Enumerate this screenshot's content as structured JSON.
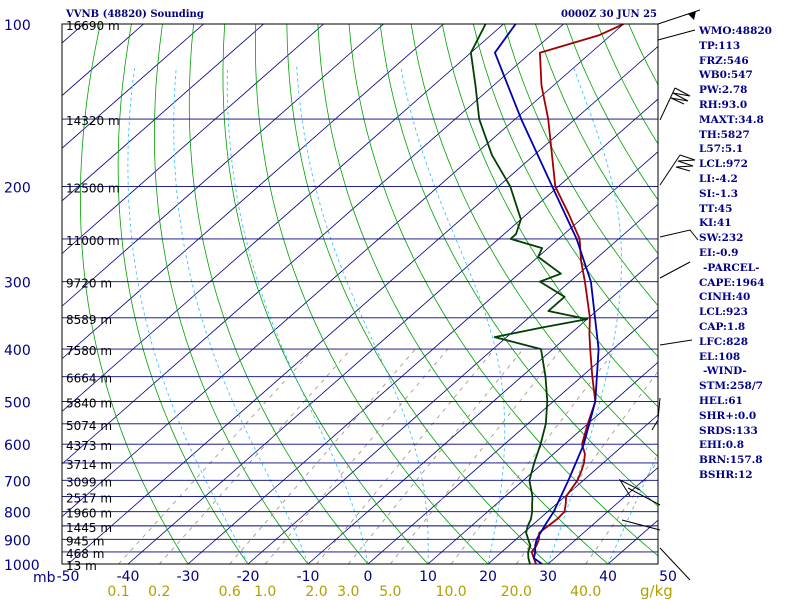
{
  "header": {
    "station": "VVNB (48820) Sounding",
    "time": "0000Z 30 JUN 25"
  },
  "side_panel": {
    "rows": [
      {
        "label": "WMO",
        "value": "48820"
      },
      {
        "label": "TP",
        "value": "113"
      },
      {
        "label": "FRZ",
        "value": "546"
      },
      {
        "label": "WB0",
        "value": "547"
      },
      {
        "label": "PW",
        "value": "2.78"
      },
      {
        "label": "RH",
        "value": "93.0"
      },
      {
        "label": "MAXT",
        "value": "34.8"
      },
      {
        "label": "TH",
        "value": "5827"
      },
      {
        "label": "L57",
        "value": "5.1"
      },
      {
        "label": "LCL",
        "value": "972"
      },
      {
        "label": "LI",
        "value": "-4.2"
      },
      {
        "label": "SI",
        "value": "-1.3"
      },
      {
        "label": "TT",
        "value": "45"
      },
      {
        "label": "KI",
        "value": "41"
      },
      {
        "label": "SW",
        "value": "232"
      },
      {
        "label": "EI",
        "value": "-0.9"
      },
      {
        "label": "",
        "value": "-PARCEL-"
      },
      {
        "label": "CAPE",
        "value": "1964"
      },
      {
        "label": "CINH",
        "value": "40"
      },
      {
        "label": "LCL",
        "value": "923"
      },
      {
        "label": "CAP",
        "value": "1.8"
      },
      {
        "label": "LFC",
        "value": "828"
      },
      {
        "label": "EL",
        "value": "108"
      },
      {
        "label": "",
        "value": "-WIND-"
      },
      {
        "label": "STM",
        "value": "258/7"
      },
      {
        "label": "HEL",
        "value": "61"
      },
      {
        "label": "SHR+",
        "value": "0.0"
      },
      {
        "label": "SRDS",
        "value": "133"
      },
      {
        "label": "EHI",
        "value": "0.8"
      },
      {
        "label": "BRN",
        "value": "157.8"
      },
      {
        "label": "BSHR",
        "value": "12"
      }
    ]
  },
  "colors": {
    "frame": "#000000",
    "isobar": "#00007f",
    "isotherm": "#00007f",
    "dry_adiabat": "#00a000",
    "moist_adiabat": "#40c0ff",
    "mixing_ratio": "#a09070",
    "temperature": "#a00000",
    "dewpoint": "#004000",
    "parcel": "#0000b0",
    "pressure_label": "#000080",
    "temp_label": "#000080",
    "mixing_label": "#b0a000"
  },
  "chart_data": {
    "type": "line",
    "title": "",
    "pressure_label_unit": "mb",
    "mixing_ratio_unit": "g/kg",
    "pressure_levels": [
      100,
      200,
      300,
      400,
      500,
      600,
      700,
      800,
      900,
      1000
    ],
    "height_levels": [
      {
        "p": 100,
        "label": "16690 m"
      },
      {
        "p": 150,
        "label": "14320 m"
      },
      {
        "p": 200,
        "label": "12500 m"
      },
      {
        "p": 250,
        "label": "11000 m"
      },
      {
        "p": 300,
        "label": "9720 m"
      },
      {
        "p": 350,
        "label": "8589 m"
      },
      {
        "p": 400,
        "label": "7580 m"
      },
      {
        "p": 450,
        "label": "6664 m"
      },
      {
        "p": 500,
        "label": "5840 m"
      },
      {
        "p": 550,
        "label": "5074 m"
      },
      {
        "p": 600,
        "label": "4373 m"
      },
      {
        "p": 650,
        "label": "3714 m"
      },
      {
        "p": 700,
        "label": "3099 m"
      },
      {
        "p": 750,
        "label": "2517 m"
      },
      {
        "p": 800,
        "label": "1960 m"
      },
      {
        "p": 850,
        "label": "1445 m"
      },
      {
        "p": 900,
        "label": "945 m"
      },
      {
        "p": 950,
        "label": "468 m"
      },
      {
        "p": 1000,
        "label": "13 m"
      }
    ],
    "temperature_ticks": [
      -50,
      -40,
      -30,
      -20,
      -10,
      0,
      10,
      20,
      30,
      40,
      50
    ],
    "temperature_tick_labels": [
      "-50",
      "-40",
      "-30",
      "-20",
      "-10",
      "0",
      "10",
      "20",
      "30",
      "40",
      "50"
    ],
    "mixing_ratio_ticks": [
      0.1,
      0.2,
      0.6,
      1.0,
      2.0,
      3.0,
      5.0,
      10.0,
      20.0,
      40.0
    ],
    "mixing_ratio_tick_labels": [
      "0.1",
      "0.2",
      "0.6",
      "1.0",
      "2.0",
      "3.0",
      "5.0",
      "10.0",
      "20.0",
      "40.0"
    ],
    "series": [
      {
        "key": "temperature",
        "points": [
          [
            1000,
            28
          ],
          [
            975,
            26.5
          ],
          [
            950,
            25
          ],
          [
            925,
            24.6
          ],
          [
            900,
            23.8
          ],
          [
            875,
            22.6
          ],
          [
            850,
            22.8
          ],
          [
            825,
            23.0
          ],
          [
            800,
            22.8
          ],
          [
            775,
            21.6
          ],
          [
            750,
            20.2
          ],
          [
            725,
            19.6
          ],
          [
            700,
            19.0
          ],
          [
            675,
            18.0
          ],
          [
            650,
            16.8
          ],
          [
            625,
            15.2
          ],
          [
            600,
            12.9
          ],
          [
            550,
            10.0
          ],
          [
            500,
            7.0
          ],
          [
            450,
            1.8
          ],
          [
            400,
            -3.8
          ],
          [
            375,
            -6.8
          ],
          [
            350,
            -9.8
          ],
          [
            325,
            -13.5
          ],
          [
            300,
            -17.5
          ],
          [
            275,
            -22.0
          ],
          [
            250,
            -26.5
          ],
          [
            225,
            -33.0
          ],
          [
            200,
            -40.5
          ],
          [
            175,
            -47.0
          ],
          [
            150,
            -54.5
          ],
          [
            130,
            -62.0
          ],
          [
            113,
            -68.5
          ],
          [
            105,
            -62.0
          ],
          [
            100,
            -60.0
          ]
        ]
      },
      {
        "key": "dewpoint",
        "points": [
          [
            1000,
            27.0
          ],
          [
            975,
            25.6
          ],
          [
            950,
            24.4
          ],
          [
            925,
            23.6
          ],
          [
            900,
            22.0
          ],
          [
            875,
            20.4
          ],
          [
            850,
            19.4
          ],
          [
            825,
            18.6
          ],
          [
            800,
            17.4
          ],
          [
            775,
            16.0
          ],
          [
            750,
            14.6
          ],
          [
            700,
            11.0
          ],
          [
            650,
            8.5
          ],
          [
            600,
            6.0
          ],
          [
            550,
            3.0
          ],
          [
            500,
            -1.0
          ],
          [
            450,
            -6.0
          ],
          [
            400,
            -12.0
          ],
          [
            380,
            -22.0
          ],
          [
            365,
            -16.0
          ],
          [
            352,
            -10.0
          ],
          [
            340,
            -18.0
          ],
          [
            320,
            -18.0
          ],
          [
            300,
            -25.0
          ],
          [
            290,
            -23.0
          ],
          [
            270,
            -30.0
          ],
          [
            260,
            -31.0
          ],
          [
            250,
            -38.0
          ],
          [
            245,
            -38.0
          ],
          [
            230,
            -40.0
          ],
          [
            200,
            -48.0
          ],
          [
            175,
            -57.0
          ],
          [
            150,
            -66.0
          ],
          [
            130,
            -73.0
          ],
          [
            113,
            -80.0
          ],
          [
            100,
            -83.0
          ]
        ]
      },
      {
        "key": "parcel",
        "points": [
          [
            1000,
            29.0
          ],
          [
            975,
            26.5
          ],
          [
            950,
            25.6
          ],
          [
            925,
            24.4
          ],
          [
            900,
            23.4
          ],
          [
            850,
            22.2
          ],
          [
            800,
            21.0
          ],
          [
            700,
            17.5
          ],
          [
            600,
            13.2
          ],
          [
            500,
            7.0
          ],
          [
            400,
            -2.4
          ],
          [
            300,
            -16.5
          ],
          [
            250,
            -27.0
          ],
          [
            200,
            -41.0
          ],
          [
            150,
            -59.0
          ],
          [
            113,
            -76.0
          ],
          [
            100,
            -78.0
          ]
        ]
      }
    ]
  }
}
